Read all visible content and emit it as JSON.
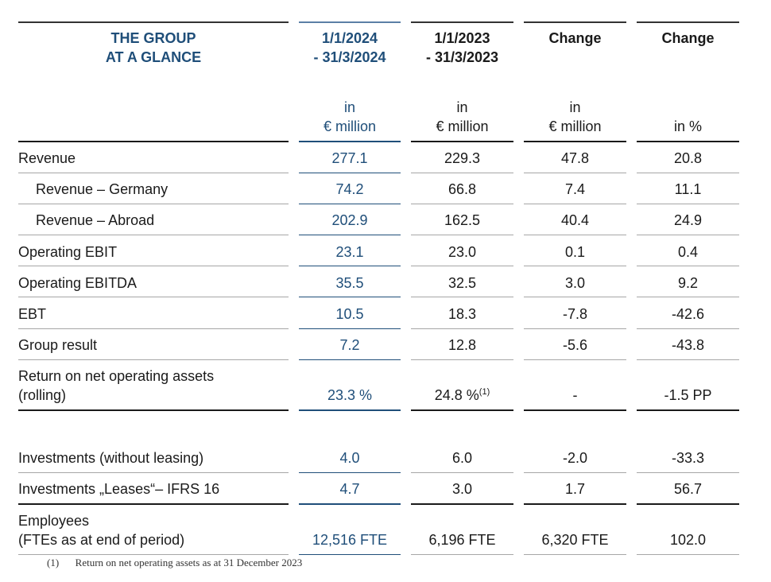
{
  "header": {
    "title_line1": "THE GROUP",
    "title_line2": "AT A GLANCE",
    "col1_line1": "1/1/2024",
    "col1_line2": "- 31/3/2024",
    "col2_line1": "1/1/2023",
    "col2_line2": "- 31/3/2023",
    "col3": "Change",
    "col4": "Change"
  },
  "units": {
    "col1_line1": "in",
    "col1_line2": "€ million",
    "col2_line1": "in",
    "col2_line2": "€ million",
    "col3_line1": "in",
    "col3_line2": "€ million",
    "col4": "in %"
  },
  "rows": [
    {
      "label": "Revenue",
      "v2024": "277.1",
      "v2023": "229.3",
      "chg_abs": "47.8",
      "chg_pct": "20.8"
    },
    {
      "label": "Revenue – Germany",
      "v2024": "74.2",
      "v2023": "66.8",
      "chg_abs": "7.4",
      "chg_pct": "11.1"
    },
    {
      "label": "Revenue – Abroad",
      "v2024": "202.9",
      "v2023": "162.5",
      "chg_abs": "40.4",
      "chg_pct": "24.9"
    },
    {
      "label": "Operating EBIT",
      "v2024": "23.1",
      "v2023": "23.0",
      "chg_abs": "0.1",
      "chg_pct": "0.4"
    },
    {
      "label": "Operating EBITDA",
      "v2024": "35.5",
      "v2023": "32.5",
      "chg_abs": "3.0",
      "chg_pct": "9.2"
    },
    {
      "label": "EBT",
      "v2024": "10.5",
      "v2023": "18.3",
      "chg_abs": "-7.8",
      "chg_pct": "-42.6"
    },
    {
      "label": "Group result",
      "v2024": "7.2",
      "v2023": "12.8",
      "chg_abs": "-5.6",
      "chg_pct": "-43.8"
    },
    {
      "label_line1": "Return on net operating assets",
      "label_line2": "(rolling)",
      "v2024": "23.3 %",
      "v2023": "24.8 %",
      "v2023_sup": "(1)",
      "chg_abs": "-",
      "chg_pct": "-1.5 PP"
    },
    {
      "label": "Investments (without leasing)",
      "v2024": "4.0",
      "v2023": "6.0",
      "chg_abs": "-2.0",
      "chg_pct": "-33.3"
    },
    {
      "label": "Investments „Leases“– IFRS 16",
      "v2024": "4.7",
      "v2023": "3.0",
      "chg_abs": "1.7",
      "chg_pct": "56.7"
    },
    {
      "label_line1": "Employees",
      "label_line2": "(FTEs as at end of period)",
      "v2024": "12,516 FTE",
      "v2023": "6,196 FTE",
      "chg_abs": "6,320 FTE",
      "chg_pct": "102.0"
    }
  ],
  "footnote": {
    "marker": "(1)",
    "text": "Return on net operating assets as at 31 December 2023"
  }
}
